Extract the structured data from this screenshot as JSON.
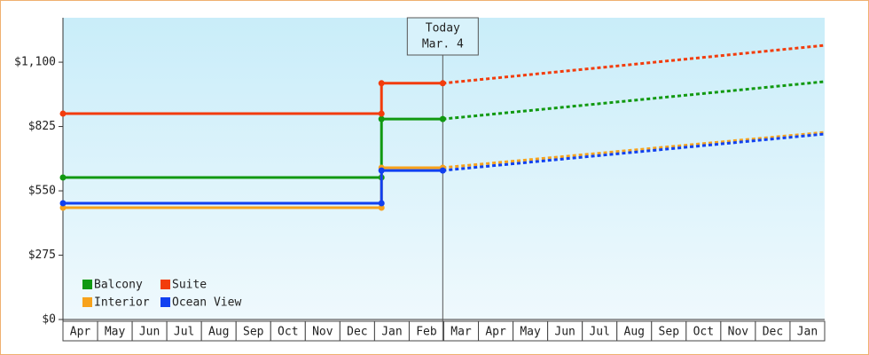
{
  "chart_data": {
    "type": "line",
    "categories": [
      "Apr",
      "May",
      "Jun",
      "Jul",
      "Aug",
      "Sep",
      "Oct",
      "Nov",
      "Dec",
      "Jan",
      "Feb",
      "Mar",
      "Apr",
      "May",
      "Jun",
      "Jul",
      "Aug",
      "Sep",
      "Oct",
      "Nov",
      "Dec",
      "Jan"
    ],
    "xlim": [
      0,
      22
    ],
    "ylim": [
      0,
      1290
    ],
    "yticks": [
      {
        "value": 0,
        "label": "$0"
      },
      {
        "value": 275,
        "label": "$275"
      },
      {
        "value": 550,
        "label": "$550"
      },
      {
        "value": 825,
        "label": "$825"
      },
      {
        "value": 1100,
        "label": "$1,100"
      }
    ],
    "today": {
      "x": 10.97,
      "label": "Today",
      "date": "Mar. 4"
    },
    "x": [
      0,
      9.2,
      9.2,
      10.97,
      22
    ],
    "series": [
      {
        "name": "Balcony",
        "color": "#119911",
        "values": [
          607,
          607,
          857,
          857,
          1017
        ]
      },
      {
        "name": "Suite",
        "color": "#f23c0c",
        "values": [
          880,
          880,
          1010,
          1010,
          1172
        ]
      },
      {
        "name": "Interior",
        "color": "#f7a21c",
        "values": [
          478,
          478,
          649,
          649,
          800
        ]
      },
      {
        "name": "Ocean View",
        "color": "#1040f0",
        "values": [
          497,
          497,
          637,
          637,
          793
        ]
      }
    ]
  }
}
